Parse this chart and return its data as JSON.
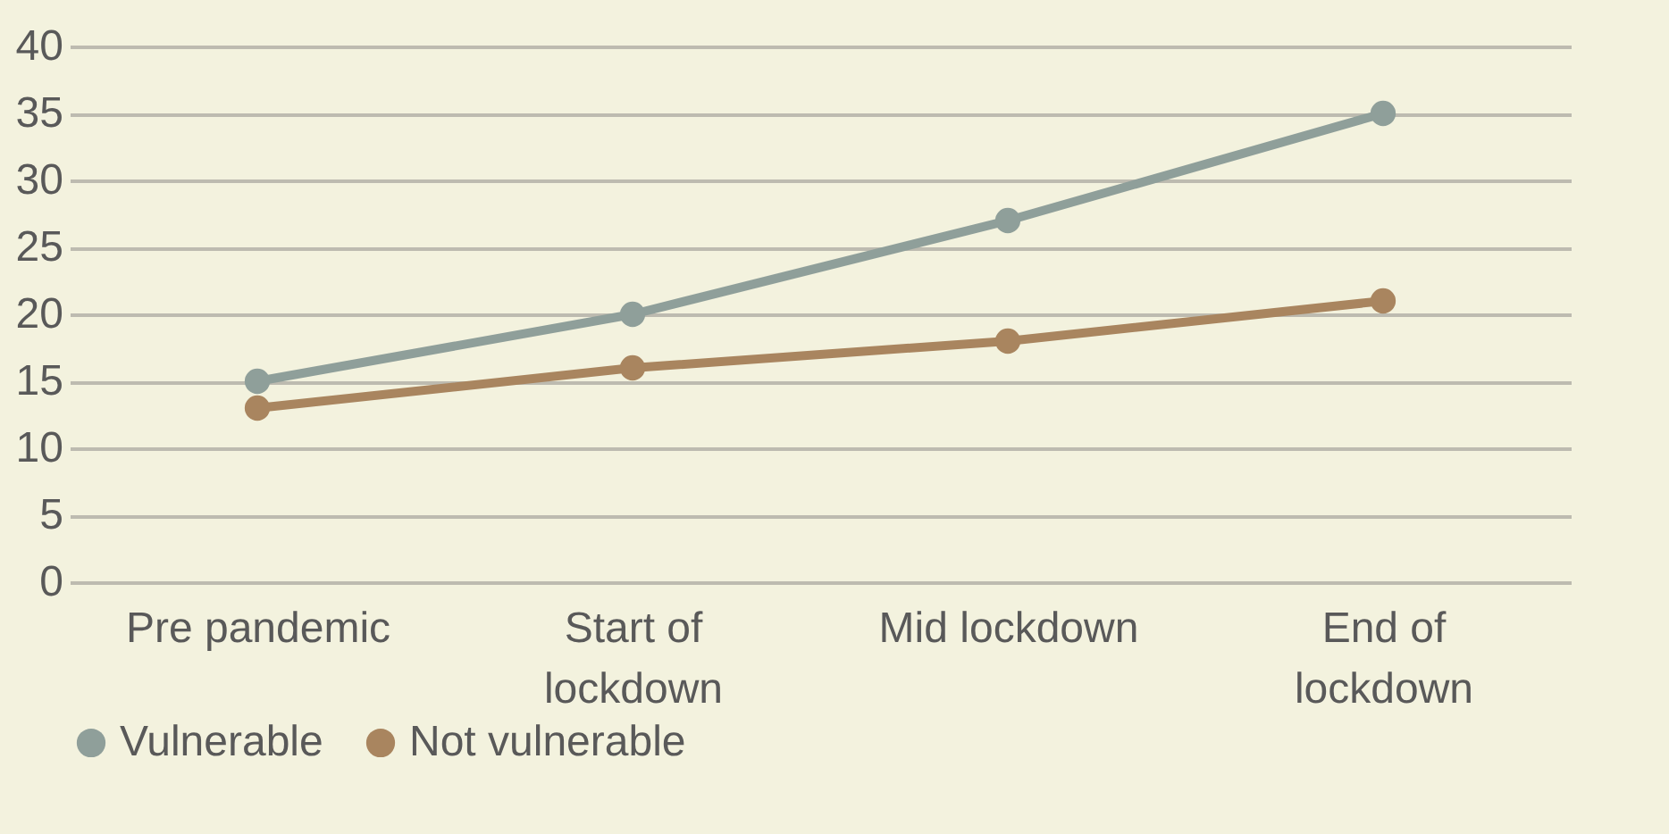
{
  "chart_data": {
    "type": "line",
    "categories": [
      "Pre pandemic",
      "Start of lockdown",
      "Mid lockdown",
      "End of lockdown"
    ],
    "series": [
      {
        "name": "Vulnerable",
        "color": "#8f9f9a",
        "values": [
          15,
          20,
          27,
          35
        ]
      },
      {
        "name": "Not vulnerable",
        "color": "#a9855f",
        "values": [
          13,
          16,
          18,
          21
        ]
      }
    ],
    "ylim": [
      0,
      40
    ],
    "yticks": [
      0,
      5,
      10,
      15,
      20,
      25,
      30,
      35,
      40
    ],
    "grid": "y",
    "legend": "bottom",
    "marker": "circle",
    "line_style": "solid"
  }
}
